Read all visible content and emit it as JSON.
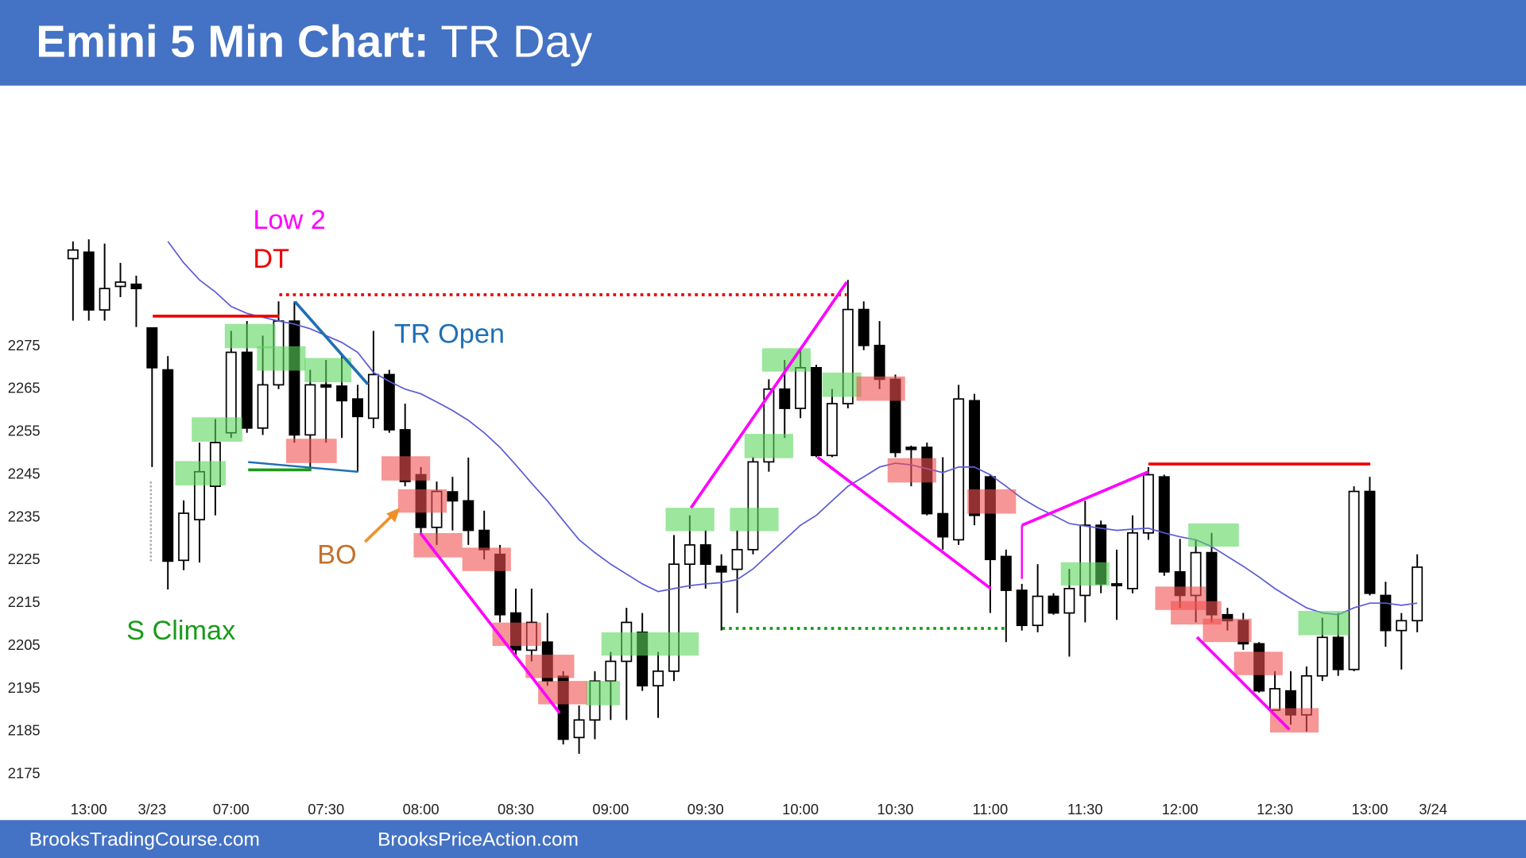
{
  "chart_data": {
    "type": "candlestick",
    "title": "Emini 5 Min Chart:",
    "subtitle": "TR Day",
    "categories": [
      null,
      "13:00",
      null,
      null,
      null,
      "3/23",
      null,
      null,
      null,
      null,
      "07:00",
      null,
      null,
      null,
      null,
      null,
      "07:30",
      null,
      null,
      null,
      null,
      null,
      "08:00",
      null,
      null,
      null,
      null,
      null,
      "08:30",
      null,
      null,
      null,
      null,
      null,
      "09:00",
      null,
      null,
      null,
      null,
      null,
      "09:30",
      null,
      null,
      null,
      null,
      null,
      "10:00",
      null,
      null,
      null,
      null,
      null,
      "10:30",
      null,
      null,
      null,
      null,
      null,
      "11:00",
      null,
      null,
      null,
      null,
      null,
      "11:30",
      null,
      null,
      null,
      null,
      null,
      "12:00",
      null,
      null,
      null,
      null,
      null,
      "12:30",
      null,
      null,
      null,
      null,
      null,
      "13:00",
      null,
      null,
      null,
      "3/24"
    ],
    "open": [
      2295.5,
      2297,
      2283.5,
      2289,
      2289.5,
      2279.3,
      2269.5,
      2225,
      2234.5,
      2242.3,
      2254.8,
      2273.6,
      2255.9,
      2266,
      2280.9,
      2254.3,
      2266,
      2265.7,
      2262.7,
      2258.2,
      2268.4,
      2255.5,
      2245,
      2232.7,
      2241,
      2238.9,
      2232,
      2226.4,
      2212.7,
      2204,
      2205.9,
      2197.9,
      2183.6,
      2187.7,
      2196.8,
      2201.4,
      2208.2,
      2195.7,
      2199.1,
      2224.1,
      2228.6,
      2223.6,
      2222.9,
      2227.5,
      2248,
      2265,
      2260.5,
      2270,
      2249.5,
      2261.6,
      2283.6,
      2275.2,
      2267.3,
      2251.4,
      2251.4,
      2235.9,
      2229.8,
      2262.3,
      2244.5,
      2225.9,
      2218,
      2209.8,
      2216.6,
      2212.7,
      2216.8,
      2233.2,
      2219.5,
      2218.4,
      2231.4,
      2244.5,
      2222.3,
      2216.8,
      2226.8,
      2212.3,
      2210.9,
      2205.5,
      2190,
      2194.5,
      2188.9,
      2198,
      2207,
      2199.5,
      2241.1,
      2216.8,
      2208.6,
      2210.9,
      null
    ],
    "high": [
      2299.5,
      2300,
      2299,
      2294.5,
      2291.5,
      2279.3,
      2272.7,
      2239,
      2252.5,
      2258,
      2278.6,
      2280.9,
      2277.5,
      2285.5,
      2285.5,
      2269.5,
      2271.8,
      2273,
      2266,
      2278.6,
      2269.5,
      2261.6,
      2246.8,
      2243.4,
      2244.5,
      2249,
      2236.6,
      2228.6,
      2218.4,
      2218.4,
      2212.7,
      2199.1,
      2191.1,
      2199.1,
      2203.6,
      2213.9,
      2212.7,
      2203.6,
      2230.9,
      2235.5,
      2232,
      2226.4,
      2232,
      2249.1,
      2267.3,
      2271.8,
      2274.1,
      2270.7,
      2265,
      2290.5,
      2285.5,
      2280.9,
      2268.4,
      2251.8,
      2252.5,
      2249.1,
      2266,
      2263.9,
      2245,
      2227.5,
      2219.5,
      2224.1,
      2217.3,
      2223,
      2238.9,
      2234.3,
      2227.5,
      2235.5,
      2246.8,
      2245,
      2230,
      2229.8,
      2231.4,
      2213.9,
      2212.7,
      2205.9,
      2199.1,
      2199.1,
      2200.2,
      2211.6,
      2212.7,
      2242.3,
      2244.5,
      2220,
      2212.7,
      2226.4,
      null
    ],
    "low": [
      2281,
      2281,
      2281,
      2286.5,
      2279.5,
      2246.8,
      2218.2,
      2222.7,
      2224.5,
      2235.5,
      2253.6,
      2254.8,
      2254.3,
      2265,
      2252.5,
      2246.8,
      2252.5,
      2253.6,
      2245.7,
      2255.9,
      2254.8,
      2242.3,
      2230.9,
      2228.6,
      2232,
      2228.6,
      2225.2,
      2210.5,
      2202.5,
      2201.4,
      2195.7,
      2182,
      2179.8,
      2183.2,
      2187.7,
      2187.7,
      2194.5,
      2188.2,
      2196.8,
      2218.4,
      2218.4,
      2208.6,
      2212.7,
      2226.4,
      2245.7,
      2253.6,
      2258.2,
      2249.1,
      2249.1,
      2260.5,
      2274.1,
      2265,
      2249.1,
      2242.3,
      2235.5,
      2227.5,
      2228.6,
      2233.2,
      2212.7,
      2205.9,
      2208.6,
      2208.2,
      2212.3,
      2202.5,
      2210.5,
      2217.3,
      2211.1,
      2217.3,
      2229.8,
      2221.4,
      2213.9,
      2210.5,
      2210.5,
      2208.6,
      2204.1,
      2194.1,
      2190,
      2186.6,
      2185,
      2196.8,
      2198,
      2199.1,
      2216.8,
      2204.8,
      2199.5,
      2208.2,
      null
    ],
    "close": [
      2297.5,
      2283.5,
      2288.5,
      2290,
      2288.5,
      2270,
      2224.8,
      2236,
      2245.7,
      2252.5,
      2273.6,
      2255.9,
      2266,
      2280.9,
      2254.3,
      2266,
      2265.5,
      2262.3,
      2258.6,
      2268.4,
      2255.5,
      2243.4,
      2232.7,
      2241.1,
      2238.9,
      2232,
      2227.5,
      2212.3,
      2204.1,
      2210.5,
      2196.8,
      2183.2,
      2187.7,
      2196.8,
      2201.4,
      2210.5,
      2195.7,
      2199.1,
      2224.1,
      2228.6,
      2224.1,
      2222.3,
      2227.5,
      2248,
      2265,
      2260.5,
      2270,
      2249.5,
      2261.6,
      2283.6,
      2275.2,
      2267.3,
      2250.2,
      2250.9,
      2235.9,
      2230.5,
      2262.7,
      2235.5,
      2225.2,
      2218,
      2209.8,
      2216.6,
      2212.7,
      2218.4,
      2233.2,
      2219.5,
      2219.1,
      2231.4,
      2245,
      2222.3,
      2216.8,
      2226.8,
      2212.3,
      2210.9,
      2205.5,
      2194.5,
      2195,
      2188.9,
      2198,
      2207,
      2199.5,
      2241.1,
      2217.3,
      2208.6,
      2210.9,
      2223.4,
      null
    ],
    "ema": {
      "color": "#5b5bd6",
      "values": [
        null,
        null,
        null,
        null,
        null,
        null,
        2299.5,
        2294.5,
        2290.5,
        2287.7,
        2284.3,
        2282.7,
        2281.8,
        2280.9,
        2280.2,
        2279.1,
        2277.5,
        2275.9,
        2273.6,
        2268.9,
        2266.8,
        2265,
        2263.9,
        2262,
        2260,
        2257.7,
        2254.8,
        2251.4,
        2247.3,
        2243,
        2238.9,
        2234.3,
        2229.8,
        2226.8,
        2224.1,
        2221.8,
        2219.5,
        2217.7,
        2218.4,
        2219.1,
        2219.5,
        2219.8,
        2220.5,
        2223,
        2226.4,
        2229.8,
        2233.2,
        2235.5,
        2238.9,
        2242.3,
        2244.5,
        2246.8,
        2247.7,
        2247.3,
        2246.4,
        2245.5,
        2246.8,
        2246.8,
        2245,
        2242.3,
        2239.5,
        2237.3,
        2235.5,
        2233.6,
        2233,
        2232.5,
        2232,
        2232.3,
        2232.5,
        2231.4,
        2230.5,
        2229.8,
        2228.2,
        2225.9,
        2223.6,
        2221.1,
        2218.4,
        2216.1,
        2213.9,
        2212.7,
        2212.3,
        2213.9,
        2215,
        2215,
        2214.5,
        2215,
        null
      ]
    },
    "up_color": "#ffffff",
    "down_color": "#000000",
    "ylim": [
      2170,
      2333
    ],
    "yticks": [
      2175,
      2185,
      2195,
      2205,
      2215,
      2225,
      2235,
      2245,
      2255,
      2265,
      2275
    ],
    "grid": false,
    "annotations": [
      "Low 2",
      "DT",
      "TR Open",
      "BO",
      "S Climax"
    ],
    "footer": [
      "BrooksTradingCourse.com",
      "BrooksPriceAction.com"
    ]
  }
}
